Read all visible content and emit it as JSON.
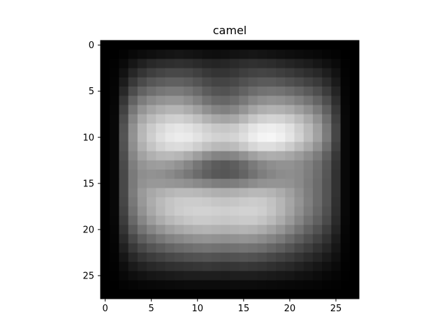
{
  "chart_data": {
    "type": "heatmap",
    "title": "camel",
    "xlabel": "",
    "ylabel": "",
    "colormap": "gray",
    "grid": false,
    "xlim": [
      -0.5,
      27.5
    ],
    "ylim": [
      27.5,
      -0.5
    ],
    "xticks": [
      0,
      5,
      10,
      15,
      20,
      25
    ],
    "yticks": [
      0,
      5,
      10,
      15,
      20,
      25
    ],
    "xtick_labels": [
      "0",
      "5",
      "10",
      "15",
      "20",
      "25"
    ],
    "ytick_labels": [
      "0",
      "5",
      "10",
      "15",
      "20",
      "25"
    ],
    "value_range": [
      0,
      255
    ],
    "values": [
      [
        0,
        0,
        0,
        0,
        0,
        0,
        0,
        0,
        0,
        0,
        0,
        0,
        0,
        0,
        0,
        0,
        0,
        0,
        0,
        0,
        0,
        0,
        0,
        0,
        0,
        0,
        0,
        0
      ],
      [
        0,
        0,
        3,
        8,
        12,
        15,
        18,
        20,
        22,
        20,
        18,
        15,
        14,
        15,
        18,
        20,
        22,
        20,
        18,
        16,
        14,
        12,
        10,
        8,
        5,
        3,
        0,
        0
      ],
      [
        0,
        2,
        10,
        22,
        32,
        40,
        44,
        46,
        48,
        46,
        42,
        38,
        36,
        38,
        42,
        46,
        48,
        46,
        44,
        40,
        36,
        32,
        28,
        22,
        16,
        10,
        2,
        0
      ],
      [
        0,
        3,
        18,
        38,
        52,
        62,
        68,
        72,
        72,
        70,
        64,
        56,
        52,
        52,
        56,
        62,
        66,
        68,
        66,
        62,
        58,
        52,
        46,
        40,
        30,
        18,
        3,
        0
      ],
      [
        0,
        4,
        28,
        56,
        74,
        86,
        92,
        96,
        96,
        92,
        84,
        74,
        68,
        68,
        72,
        80,
        86,
        90,
        90,
        86,
        80,
        74,
        66,
        58,
        44,
        26,
        4,
        0
      ],
      [
        0,
        5,
        40,
        76,
        98,
        110,
        118,
        122,
        122,
        116,
        106,
        92,
        84,
        82,
        88,
        98,
        108,
        114,
        116,
        114,
        108,
        100,
        90,
        78,
        60,
        36,
        5,
        0
      ],
      [
        0,
        6,
        54,
        98,
        124,
        138,
        146,
        150,
        150,
        142,
        130,
        114,
        104,
        102,
        108,
        120,
        134,
        142,
        146,
        144,
        138,
        128,
        116,
        100,
        78,
        46,
        6,
        0
      ],
      [
        0,
        7,
        66,
        118,
        148,
        164,
        174,
        180,
        180,
        172,
        160,
        144,
        132,
        128,
        134,
        148,
        164,
        174,
        178,
        176,
        170,
        158,
        144,
        124,
        96,
        56,
        7,
        0
      ],
      [
        0,
        8,
        76,
        134,
        168,
        186,
        198,
        206,
        208,
        202,
        192,
        178,
        168,
        164,
        168,
        182,
        198,
        208,
        212,
        210,
        202,
        188,
        170,
        146,
        112,
        64,
        8,
        0
      ],
      [
        0,
        8,
        82,
        144,
        182,
        202,
        216,
        226,
        230,
        226,
        218,
        208,
        200,
        198,
        202,
        214,
        228,
        236,
        238,
        234,
        224,
        206,
        186,
        160,
        122,
        70,
        8,
        0
      ],
      [
        0,
        8,
        84,
        146,
        184,
        206,
        222,
        232,
        236,
        234,
        226,
        216,
        210,
        208,
        212,
        222,
        236,
        244,
        246,
        240,
        228,
        210,
        188,
        162,
        124,
        70,
        8,
        0
      ],
      [
        0,
        8,
        82,
        142,
        176,
        196,
        210,
        218,
        220,
        216,
        206,
        194,
        186,
        184,
        188,
        200,
        214,
        222,
        222,
        216,
        204,
        188,
        170,
        146,
        112,
        64,
        8,
        0
      ],
      [
        0,
        8,
        78,
        134,
        162,
        176,
        184,
        186,
        182,
        172,
        158,
        142,
        132,
        130,
        134,
        146,
        160,
        170,
        174,
        172,
        166,
        156,
        142,
        124,
        96,
        56,
        8,
        0
      ],
      [
        0,
        8,
        74,
        126,
        148,
        156,
        158,
        154,
        146,
        134,
        118,
        102,
        92,
        88,
        94,
        106,
        122,
        134,
        142,
        146,
        146,
        140,
        128,
        112,
        88,
        52,
        8,
        0
      ],
      [
        0,
        8,
        72,
        122,
        142,
        146,
        144,
        138,
        130,
        120,
        108,
        96,
        88,
        86,
        90,
        100,
        114,
        126,
        134,
        140,
        142,
        138,
        126,
        110,
        86,
        50,
        8,
        0
      ],
      [
        0,
        8,
        72,
        122,
        146,
        152,
        152,
        150,
        148,
        144,
        138,
        132,
        126,
        124,
        126,
        132,
        140,
        146,
        148,
        148,
        146,
        138,
        124,
        108,
        84,
        50,
        8,
        0
      ],
      [
        0,
        8,
        72,
        124,
        154,
        168,
        176,
        182,
        186,
        186,
        184,
        180,
        176,
        174,
        176,
        180,
        184,
        184,
        180,
        172,
        160,
        144,
        126,
        108,
        84,
        50,
        8,
        0
      ],
      [
        0,
        8,
        70,
        120,
        152,
        172,
        186,
        196,
        202,
        204,
        204,
        202,
        198,
        196,
        198,
        202,
        204,
        202,
        194,
        182,
        166,
        148,
        128,
        108,
        84,
        48,
        8,
        0
      ],
      [
        0,
        8,
        66,
        114,
        146,
        168,
        184,
        196,
        204,
        208,
        210,
        210,
        208,
        206,
        208,
        210,
        210,
        206,
        196,
        182,
        164,
        144,
        124,
        104,
        80,
        46,
        8,
        0
      ],
      [
        0,
        7,
        60,
        104,
        134,
        156,
        172,
        184,
        192,
        198,
        202,
        202,
        200,
        198,
        200,
        202,
        202,
        196,
        186,
        172,
        154,
        134,
        114,
        96,
        74,
        42,
        7,
        0
      ],
      [
        0,
        6,
        52,
        90,
        116,
        134,
        148,
        160,
        168,
        174,
        178,
        180,
        178,
        176,
        178,
        180,
        178,
        172,
        162,
        150,
        134,
        116,
        98,
        82,
        62,
        36,
        6,
        0
      ],
      [
        0,
        5,
        42,
        72,
        94,
        108,
        120,
        130,
        136,
        142,
        146,
        148,
        146,
        144,
        146,
        148,
        146,
        140,
        132,
        122,
        108,
        94,
        80,
        66,
        50,
        28,
        5,
        0
      ],
      [
        0,
        4,
        32,
        56,
        72,
        84,
        92,
        100,
        106,
        110,
        114,
        116,
        114,
        112,
        114,
        116,
        114,
        110,
        102,
        94,
        84,
        72,
        62,
        50,
        38,
        22,
        4,
        0
      ],
      [
        0,
        3,
        22,
        40,
        52,
        60,
        66,
        72,
        76,
        80,
        82,
        84,
        82,
        80,
        82,
        84,
        82,
        78,
        72,
        66,
        60,
        52,
        44,
        36,
        26,
        16,
        3,
        0
      ],
      [
        0,
        2,
        14,
        26,
        34,
        40,
        44,
        48,
        50,
        52,
        54,
        56,
        54,
        52,
        54,
        56,
        54,
        52,
        48,
        44,
        40,
        34,
        28,
        22,
        16,
        10,
        2,
        0
      ],
      [
        0,
        1,
        8,
        14,
        18,
        22,
        24,
        26,
        28,
        30,
        30,
        30,
        30,
        28,
        30,
        30,
        30,
        28,
        26,
        24,
        22,
        18,
        16,
        12,
        8,
        5,
        1,
        0
      ],
      [
        0,
        0,
        3,
        5,
        7,
        8,
        9,
        10,
        11,
        12,
        12,
        12,
        12,
        11,
        12,
        12,
        12,
        11,
        10,
        9,
        8,
        7,
        6,
        5,
        3,
        2,
        0,
        0
      ],
      [
        0,
        0,
        0,
        0,
        0,
        0,
        0,
        0,
        0,
        0,
        0,
        0,
        0,
        0,
        0,
        0,
        0,
        0,
        0,
        0,
        0,
        0,
        0,
        0,
        0,
        0,
        0,
        0
      ]
    ]
  }
}
